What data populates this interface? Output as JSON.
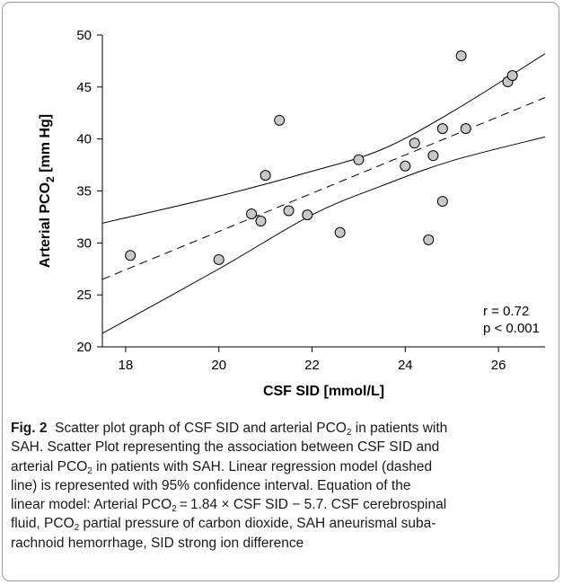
{
  "chart_data": {
    "type": "scatter",
    "xlabel": "CSF SID [mmol/L]",
    "ylabel_parts": [
      "Arterial PCO",
      "2",
      " [mm Hg]"
    ],
    "xlim": [
      17.5,
      27
    ],
    "ylim": [
      20,
      50
    ],
    "x_ticks": [
      18,
      20,
      22,
      24,
      26
    ],
    "y_ticks": [
      20,
      25,
      30,
      35,
      40,
      45,
      50
    ],
    "points": [
      {
        "x": 18.1,
        "y": 28.8
      },
      {
        "x": 20.0,
        "y": 28.4
      },
      {
        "x": 20.7,
        "y": 32.8
      },
      {
        "x": 20.9,
        "y": 32.1
      },
      {
        "x": 21.0,
        "y": 36.5
      },
      {
        "x": 21.3,
        "y": 41.8
      },
      {
        "x": 21.5,
        "y": 33.1
      },
      {
        "x": 21.9,
        "y": 32.7
      },
      {
        "x": 22.6,
        "y": 31.0
      },
      {
        "x": 23.0,
        "y": 38.0
      },
      {
        "x": 24.0,
        "y": 37.4
      },
      {
        "x": 24.2,
        "y": 39.6
      },
      {
        "x": 24.5,
        "y": 30.3
      },
      {
        "x": 24.6,
        "y": 38.4
      },
      {
        "x": 24.8,
        "y": 41.0
      },
      {
        "x": 24.8,
        "y": 34.0
      },
      {
        "x": 25.2,
        "y": 48.0
      },
      {
        "x": 25.3,
        "y": 41.0
      },
      {
        "x": 26.2,
        "y": 45.5
      },
      {
        "x": 26.3,
        "y": 46.1
      }
    ],
    "regression": {
      "slope": 1.84,
      "intercept": -5.7,
      "style": "dashed"
    },
    "confidence_upper": [
      {
        "x": 17.5,
        "y": 31.9
      },
      {
        "x": 20.0,
        "y": 34.5
      },
      {
        "x": 22.0,
        "y": 36.9
      },
      {
        "x": 23.5,
        "y": 39.0
      },
      {
        "x": 25.0,
        "y": 42.6
      },
      {
        "x": 27.0,
        "y": 48.2
      }
    ],
    "confidence_lower": [
      {
        "x": 17.5,
        "y": 21.3
      },
      {
        "x": 20.0,
        "y": 27.5
      },
      {
        "x": 22.0,
        "y": 32.7
      },
      {
        "x": 23.5,
        "y": 35.5
      },
      {
        "x": 25.0,
        "y": 37.9
      },
      {
        "x": 27.0,
        "y": 40.2
      }
    ],
    "annotations": [
      "r = 0.72",
      "p < 0.001"
    ],
    "grid": false,
    "marker_color": "#c8c8c8"
  },
  "caption": {
    "fig_label": "Fig. 2",
    "line1_a": "Scatter plot graph of CSF SID and arterial PCO",
    "line1_sub": "2",
    "line1_b": " in patients with",
    "line2": "SAH. Scatter Plot representing the association between CSF SID and",
    "line3_a": "arterial PCO",
    "line3_sub": "2",
    "line3_b": " in patients with SAH. Linear regression model (dashed",
    "line4": "line) is represented with 95% confidence interval. Equation of the",
    "line5_a": "linear model: Arterial PCO",
    "line5_sub": "2",
    "line5_b": " = 1.84 × CSF SID − 5.7. CSF cerebrospinal",
    "line6_a": "fluid, PCO",
    "line6_sub": "2",
    "line6_b": " partial pressure of carbon dioxide, SAH aneurismal suba-",
    "line7": "rachnoid hemorrhage, SID strong ion difference"
  }
}
